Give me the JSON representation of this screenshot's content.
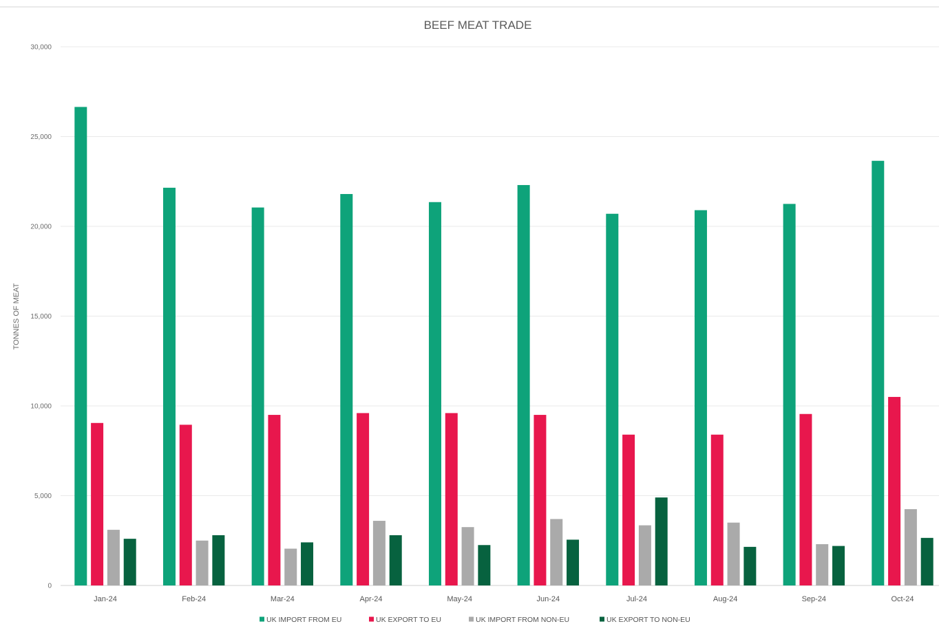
{
  "chart_data": {
    "type": "bar",
    "title": "BEEF MEAT TRADE",
    "xlabel": "",
    "ylabel": "TONNES OF MEAT",
    "ylim": [
      0,
      30000
    ],
    "yticks": [
      0,
      5000,
      10000,
      15000,
      20000,
      25000,
      30000
    ],
    "ytick_labels": [
      "0",
      "5,000",
      "10,000",
      "15,000",
      "20,000",
      "25,000",
      "30,000"
    ],
    "grid": true,
    "legend_position": "bottom",
    "categories": [
      "Jan-24",
      "Feb-24",
      "Mar-24",
      "Apr-24",
      "May-24",
      "Jun-24",
      "Jul-24",
      "Aug-24",
      "Sep-24",
      "Oct-24"
    ],
    "series": [
      {
        "name": "UK IMPORT FROM EU",
        "color": "#0ea37a",
        "values": [
          26650,
          22150,
          21050,
          21800,
          21350,
          22300,
          20700,
          20900,
          21250,
          23650
        ]
      },
      {
        "name": "UK EXPORT TO EU",
        "color": "#e8174d",
        "values": [
          9050,
          8950,
          9500,
          9600,
          9600,
          9500,
          8400,
          8400,
          9550,
          10500
        ]
      },
      {
        "name": "UK IMPORT FROM NON-EU",
        "color": "#aaaaaa",
        "values": [
          3100,
          2500,
          2050,
          3600,
          3250,
          3700,
          3350,
          3500,
          2300,
          4250
        ]
      },
      {
        "name": "UK EXPORT TO NON-EU",
        "color": "#07623f",
        "values": [
          2600,
          2800,
          2400,
          2800,
          2250,
          2550,
          4900,
          2150,
          2200,
          2650
        ]
      }
    ]
  }
}
